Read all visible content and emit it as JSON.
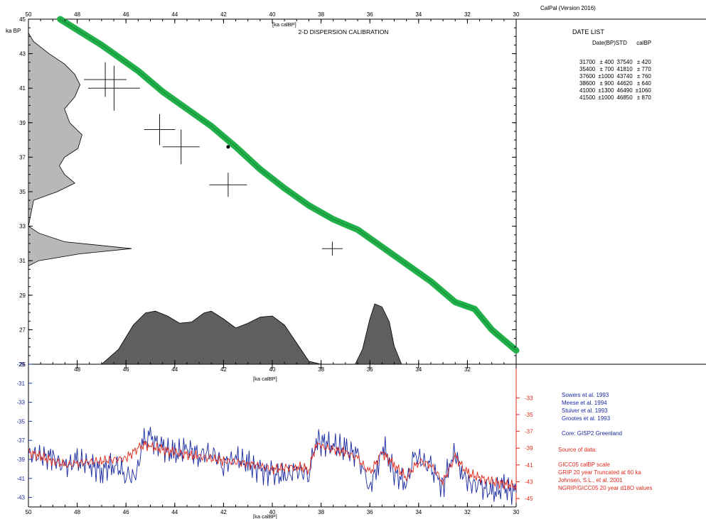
{
  "header": {
    "app_version": "CalPal (Version 2016)",
    "title": "2-D DISPERSION CALIBRATION",
    "top_axis_label": "[ka calBP]",
    "y_unit_label": "ka BP"
  },
  "date_list": {
    "title": "DATE LIST",
    "header": "Date(BP)STD      calBP",
    "rows": [
      {
        "bp": "31700",
        "std": "± 400",
        "cal": "37540",
        "calstd": "± 420"
      },
      {
        "bp": "35400",
        "std": "± 700",
        "cal": "41810",
        "calstd": "± 770"
      },
      {
        "bp": "37600",
        "std": "±1000",
        "cal": "43740",
        "calstd": "± 760"
      },
      {
        "bp": "38600",
        "std": "± 900",
        "cal": "44620",
        "calstd": "± 640"
      },
      {
        "bp": "41000",
        "std": "±1300",
        "cal": "46490",
        "calstd": "±1060"
      },
      {
        "bp": "41500",
        "std": "±1000",
        "cal": "46850",
        "calstd": "± 870"
      }
    ]
  },
  "references": [
    "Sowers et al. 1993",
    "Meese et al. 1994",
    "Stuiver et al. 1993",
    "Grootes et al. 1993"
  ],
  "core": "Core: GISP2 Greenland",
  "source": {
    "title": "Source of data:",
    "lines": [
      "GICC05 calBP scale",
      "GRIP 20 year Truncated at 60 ka",
      "Johnsen, S.L., et al. 2001",
      "NGRIP/GICC05 20 year d18O values"
    ]
  },
  "colors": {
    "curve": "#22b04a",
    "density_fill_main": "#5f5f5f",
    "density_fill_side": "#b8b8b8",
    "blue_series": "#1a2aa0",
    "red_series": "#e0281a"
  },
  "chart_data": [
    {
      "type": "line",
      "title": "2-D DISPERSION CALIBRATION",
      "xlabel": "[ka calBP]",
      "ylabel": "ka BP",
      "xlim": [
        50,
        30
      ],
      "ylim": [
        25,
        45
      ],
      "x_ticks": [
        50,
        48,
        46,
        44,
        42,
        40,
        38,
        36,
        34,
        32,
        30
      ],
      "y_ticks": [
        25,
        27,
        29,
        31,
        33,
        35,
        37,
        39,
        41,
        43,
        45
      ],
      "y_tick_labels": [
        "25",
        "27",
        "29",
        "31",
        "33",
        "35",
        "37",
        "39",
        "41",
        "43",
        "45"
      ],
      "calibration_curve": [
        [
          48.7,
          45.0
        ],
        [
          47,
          43.5
        ],
        [
          45.5,
          42.0
        ],
        [
          44.5,
          40.8
        ],
        [
          43.5,
          39.8
        ],
        [
          42.5,
          38.8
        ],
        [
          41.5,
          37.6
        ],
        [
          40.5,
          36.3
        ],
        [
          39.5,
          35.2
        ],
        [
          38.5,
          34.2
        ],
        [
          37.5,
          33.4
        ],
        [
          36.5,
          32.8
        ],
        [
          35.5,
          31.8
        ],
        [
          34.5,
          30.8
        ],
        [
          33.5,
          29.8
        ],
        [
          32.5,
          28.6
        ],
        [
          31.7,
          28.2
        ],
        [
          31.0,
          27.0
        ],
        [
          30.0,
          25.8
        ]
      ],
      "dates": [
        {
          "cal": 37.54,
          "calstd": 0.42,
          "bp": 31.7,
          "std": 0.4
        },
        {
          "cal": 41.81,
          "calstd": 0.77,
          "bp": 35.4,
          "std": 0.7
        },
        {
          "cal": 43.74,
          "calstd": 0.76,
          "bp": 37.6,
          "std": 1.0
        },
        {
          "cal": 44.62,
          "calstd": 0.64,
          "bp": 38.6,
          "std": 0.9
        },
        {
          "cal": 46.49,
          "calstd": 1.06,
          "bp": 41.0,
          "std": 1.3
        },
        {
          "cal": 46.85,
          "calstd": 0.87,
          "bp": 41.5,
          "std": 1.0
        }
      ],
      "cal_density": [
        [
          47.0,
          0
        ],
        [
          46.3,
          0.25
        ],
        [
          45.7,
          0.65
        ],
        [
          45.2,
          0.85
        ],
        [
          44.8,
          0.88
        ],
        [
          44.3,
          0.8
        ],
        [
          43.8,
          0.68
        ],
        [
          43.3,
          0.7
        ],
        [
          42.8,
          0.85
        ],
        [
          42.5,
          0.88
        ],
        [
          42.0,
          0.75
        ],
        [
          41.5,
          0.6
        ],
        [
          41.0,
          0.68
        ],
        [
          40.5,
          0.78
        ],
        [
          40.0,
          0.8
        ],
        [
          39.5,
          0.65
        ],
        [
          39.0,
          0.35
        ],
        [
          38.5,
          0.05
        ],
        [
          38.0,
          0
        ]
      ],
      "cal_density_peak": [
        [
          36.6,
          0
        ],
        [
          36.3,
          0.25
        ],
        [
          36.0,
          0.75
        ],
        [
          35.8,
          1.0
        ],
        [
          35.5,
          0.95
        ],
        [
          35.2,
          0.7
        ],
        [
          35.0,
          0.3
        ],
        [
          34.7,
          0
        ]
      ],
      "bp_density": [
        [
          30.7,
          0
        ],
        [
          31.0,
          0.1
        ],
        [
          31.4,
          0.5
        ],
        [
          31.7,
          1.0
        ],
        [
          32.1,
          0.35
        ],
        [
          32.6,
          0.1
        ],
        [
          33.0,
          0
        ],
        [
          34.5,
          0.05
        ],
        [
          35.0,
          0.28
        ],
        [
          35.5,
          0.45
        ],
        [
          36.0,
          0.35
        ],
        [
          36.5,
          0.3
        ],
        [
          37.0,
          0.35
        ],
        [
          37.5,
          0.48
        ],
        [
          38.3,
          0.52
        ],
        [
          39.0,
          0.4
        ],
        [
          39.8,
          0.35
        ],
        [
          40.5,
          0.45
        ],
        [
          41.2,
          0.5
        ],
        [
          41.8,
          0.45
        ],
        [
          42.4,
          0.35
        ],
        [
          43.0,
          0.2
        ],
        [
          43.7,
          0.05
        ],
        [
          44.2,
          0
        ]
      ]
    },
    {
      "type": "line",
      "xlabel": "[ka calBP]",
      "xlim": [
        50,
        30
      ],
      "x_ticks": [
        50,
        48,
        46,
        44,
        42,
        40,
        38,
        36,
        34,
        32,
        30
      ],
      "y_left_ticks": [
        -29,
        -31,
        -33,
        -35,
        -37,
        -39,
        -41,
        -43
      ],
      "y_left_lim": [
        -29,
        -44
      ],
      "y_right_ticks": [
        -33,
        -35,
        -37,
        -39,
        -41,
        -43,
        -45
      ],
      "y_right_lim": [
        -29,
        -46
      ],
      "series": [
        {
          "name": "GISP2",
          "axis": "left",
          "values": [
            [
              50,
              -38.5
            ],
            [
              49,
              -38.8
            ],
            [
              48.5,
              -39.8
            ],
            [
              48,
              -39.2
            ],
            [
              47.5,
              -39.5
            ],
            [
              47,
              -40.2
            ],
            [
              46.5,
              -39.5
            ],
            [
              46,
              -40.5
            ],
            [
              45.6,
              -41.0
            ],
            [
              45.3,
              -37.0
            ],
            [
              45,
              -36.8
            ],
            [
              44.5,
              -37.8
            ],
            [
              44,
              -38.5
            ],
            [
              43.5,
              -37.8
            ],
            [
              43,
              -38.5
            ],
            [
              42.5,
              -38.2
            ],
            [
              42,
              -39.5
            ],
            [
              41.5,
              -38.8
            ],
            [
              41,
              -39.5
            ],
            [
              40.5,
              -40.2
            ],
            [
              40,
              -40.5
            ],
            [
              39.5,
              -40.8
            ],
            [
              39,
              -40.2
            ],
            [
              38.5,
              -40.5
            ],
            [
              38.2,
              -36.8
            ],
            [
              38,
              -37.2
            ],
            [
              37.5,
              -37.5
            ],
            [
              37,
              -38.0
            ],
            [
              36.5,
              -38.5
            ],
            [
              36.2,
              -41.0
            ],
            [
              36,
              -41.8
            ],
            [
              35.7,
              -40.0
            ],
            [
              35.5,
              -37.5
            ],
            [
              35.2,
              -38.8
            ],
            [
              35,
              -40.5
            ],
            [
              34.5,
              -41.5
            ],
            [
              34.2,
              -39.0
            ],
            [
              34,
              -38.8
            ],
            [
              33.5,
              -40.0
            ],
            [
              33.2,
              -41.0
            ],
            [
              33,
              -42.0
            ],
            [
              32.7,
              -39.0
            ],
            [
              32.5,
              -38.5
            ],
            [
              32.2,
              -40.5
            ],
            [
              32,
              -41.5
            ],
            [
              31.5,
              -41.8
            ],
            [
              31,
              -42.5
            ],
            [
              30.5,
              -42.0
            ],
            [
              30,
              -42.5
            ]
          ]
        },
        {
          "name": "GRIP",
          "axis": "right",
          "values": [
            [
              50,
              -39.5
            ],
            [
              49,
              -40.5
            ],
            [
              48.5,
              -41.0
            ],
            [
              48,
              -40.8
            ],
            [
              47,
              -40.5
            ],
            [
              46,
              -40.2
            ],
            [
              45.3,
              -38.5
            ],
            [
              45,
              -38.8
            ],
            [
              44,
              -39.5
            ],
            [
              43,
              -40.0
            ],
            [
              42,
              -40.5
            ],
            [
              41,
              -40.8
            ],
            [
              40,
              -41.5
            ],
            [
              39,
              -41.2
            ],
            [
              38.5,
              -41.5
            ],
            [
              38.2,
              -38.5
            ],
            [
              38,
              -38.8
            ],
            [
              37,
              -39.5
            ],
            [
              36.5,
              -40.2
            ],
            [
              36,
              -42.0
            ],
            [
              35.5,
              -39.5
            ],
            [
              35,
              -41.0
            ],
            [
              34.5,
              -42.5
            ],
            [
              34,
              -40.5
            ],
            [
              33.5,
              -41.0
            ],
            [
              33,
              -43.0
            ],
            [
              32.5,
              -40.0
            ],
            [
              32,
              -42.0
            ],
            [
              31,
              -43.0
            ],
            [
              30,
              -43.5
            ]
          ]
        }
      ]
    }
  ]
}
